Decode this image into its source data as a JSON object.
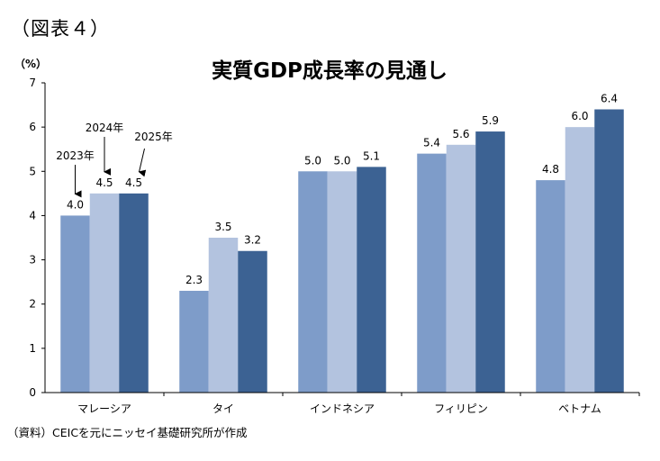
{
  "figure_label": "（図表４）",
  "source_note": "（資料）CEICを元にニッセイ基礎研究所が作成",
  "chart_data": {
    "type": "bar",
    "title": "実質GDP成長率の見通し",
    "ylabel": "（%）",
    "ylim": [
      0,
      7
    ],
    "yticks": [
      0,
      1,
      2,
      3,
      4,
      5,
      6,
      7
    ],
    "grid": false,
    "legend": "none",
    "categories": [
      "マレーシア",
      "タイ",
      "インドネシア",
      "フィリピン",
      "ベトナム"
    ],
    "series": [
      {
        "name": "2023年",
        "color": "#7e9cc9",
        "values": [
          4.0,
          2.3,
          5.0,
          5.4,
          4.8
        ]
      },
      {
        "name": "2024年",
        "color": "#b3c3df",
        "values": [
          4.5,
          3.5,
          5.0,
          5.6,
          6.0
        ]
      },
      {
        "name": "2025年",
        "color": "#3c6293",
        "values": [
          4.5,
          3.2,
          5.1,
          5.9,
          6.4
        ]
      }
    ],
    "value_labels": [
      [
        "4.0",
        "2.3",
        "5.0",
        "5.4",
        "4.8"
      ],
      [
        "4.5",
        "3.5",
        "5.0",
        "5.6",
        "6.0"
      ],
      [
        "4.5",
        "3.2",
        "5.1",
        "5.9",
        "6.4"
      ]
    ],
    "annotation_category": "マレーシア"
  }
}
